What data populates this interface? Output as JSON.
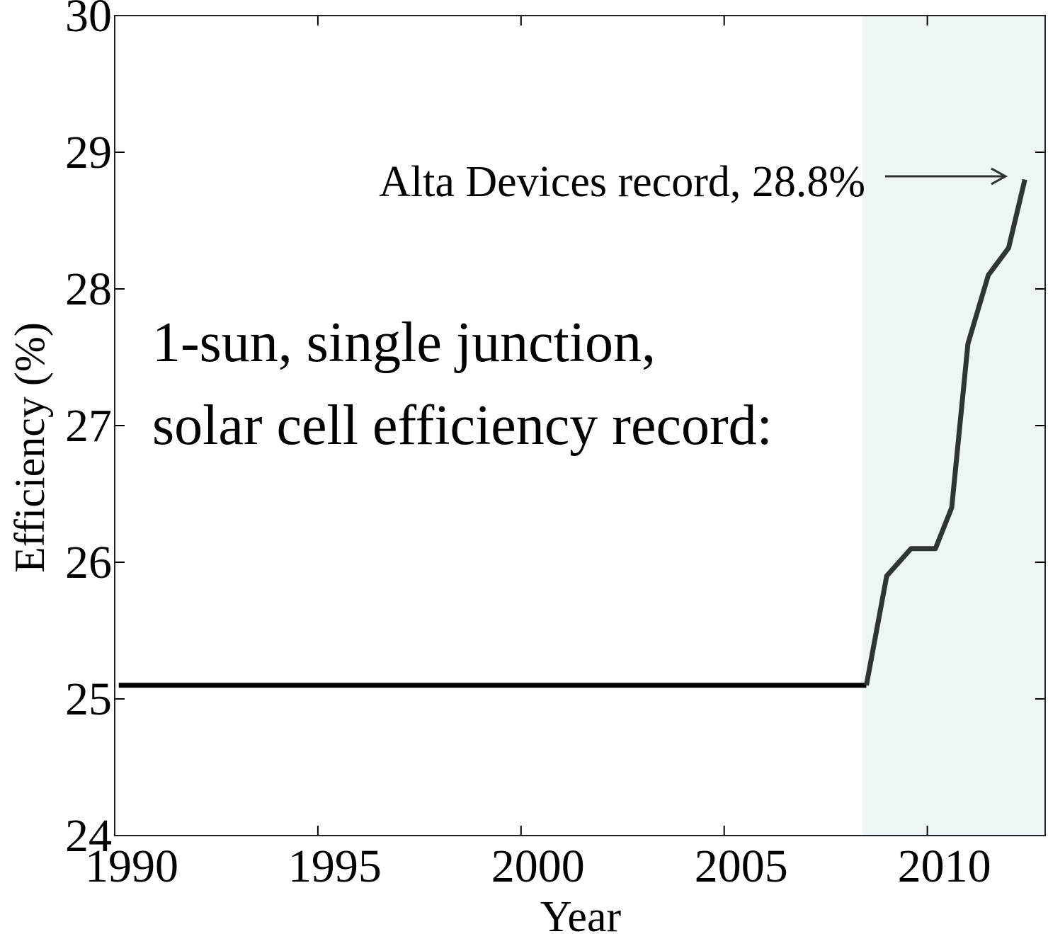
{
  "chart_data": {
    "type": "line",
    "xlabel": "Year",
    "ylabel": "Efficiency (%)",
    "xlim": [
      1990,
      2012.9
    ],
    "ylim": [
      24,
      30
    ],
    "xticks": [
      1990,
      1995,
      2000,
      2005,
      2010
    ],
    "yticks": [
      24,
      25,
      26,
      27,
      28,
      29,
      30
    ],
    "shaded_xrange": [
      2008.4,
      2012.9
    ],
    "shade_color": "#edf5f7",
    "series": [
      {
        "color": "#000000",
        "x": [
          1990.1,
          2008.5
        ],
        "values": [
          25.1,
          25.1
        ]
      },
      {
        "color": "#2f3436",
        "x": [
          2008.5,
          2009.0,
          2009.6,
          2010.2,
          2010.6,
          2011.0,
          2011.5,
          2012.0,
          2012.4
        ],
        "values": [
          25.1,
          25.9,
          26.1,
          26.1,
          26.4,
          27.6,
          28.1,
          28.3,
          28.8
        ]
      }
    ],
    "annotations": [
      "Alta Devices record, 28.8%",
      "1-sun, single junction,",
      "solar cell efficiency record:"
    ]
  }
}
